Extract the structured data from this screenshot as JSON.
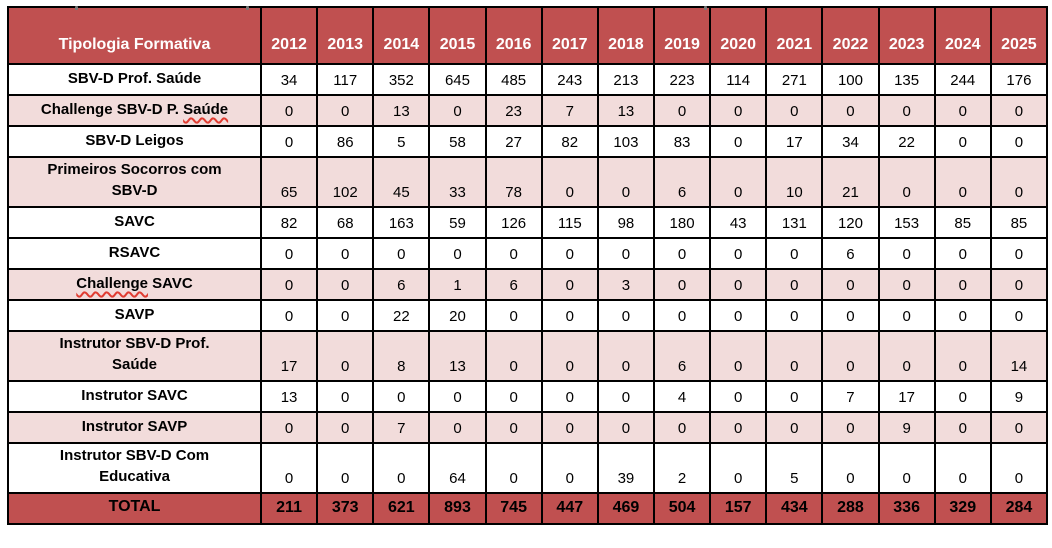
{
  "colors": {
    "header_bg": "#C05050",
    "total_bg": "#C05050",
    "row_alt_bg": "#F2DCDB",
    "row_bg": "#FFFFFF",
    "header_text": "#FFFFFF",
    "body_text": "#000000",
    "border": "#000000",
    "spellcheck_underline": "#E03C31"
  },
  "table": {
    "header": {
      "label_column": "Tipologia Formativa",
      "years": [
        "2012",
        "2013",
        "2014",
        "2015",
        "2016",
        "2017",
        "2018",
        "2019",
        "2020",
        "2021",
        "2022",
        "2023",
        "2024",
        "2025"
      ]
    },
    "rows": [
      {
        "label": "SBV-D Prof. Saúde",
        "shade": "white",
        "values": [
          34,
          117,
          352,
          645,
          485,
          243,
          213,
          223,
          114,
          271,
          100,
          135,
          244,
          176
        ]
      },
      {
        "label": "Challenge SBV-D P. Saúde",
        "shade": "pink",
        "label_parts": [
          {
            "text": "Challenge SBV-D P. ",
            "squiggle": false
          },
          {
            "text": "Saúde",
            "squiggle": true
          }
        ],
        "values": [
          0,
          0,
          13,
          0,
          23,
          7,
          13,
          0,
          0,
          0,
          0,
          0,
          0,
          0
        ]
      },
      {
        "label": "SBV-D Leigos",
        "shade": "white",
        "values": [
          0,
          86,
          5,
          58,
          27,
          82,
          103,
          83,
          0,
          17,
          34,
          22,
          0,
          0
        ]
      },
      {
        "label": "Primeiros Socorros com\nSBV-D",
        "shade": "pink",
        "two_line": true,
        "values": [
          65,
          102,
          45,
          33,
          78,
          0,
          0,
          6,
          0,
          10,
          21,
          0,
          0,
          0
        ]
      },
      {
        "label": "SAVC",
        "shade": "white",
        "values": [
          82,
          68,
          163,
          59,
          126,
          115,
          98,
          180,
          43,
          131,
          120,
          153,
          85,
          85
        ]
      },
      {
        "label": "RSAVC",
        "shade": "white",
        "values": [
          0,
          0,
          0,
          0,
          0,
          0,
          0,
          0,
          0,
          0,
          6,
          0,
          0,
          0
        ]
      },
      {
        "label": "Challenge SAVC",
        "shade": "pink",
        "label_parts": [
          {
            "text": "Challenge",
            "squiggle": true
          },
          {
            "text": " SAVC",
            "squiggle": false
          }
        ],
        "values": [
          0,
          0,
          6,
          1,
          6,
          0,
          3,
          0,
          0,
          0,
          0,
          0,
          0,
          0
        ]
      },
      {
        "label": "SAVP",
        "shade": "white",
        "values": [
          0,
          0,
          22,
          20,
          0,
          0,
          0,
          0,
          0,
          0,
          0,
          0,
          0,
          0
        ]
      },
      {
        "label": "Instrutor SBV-D Prof.\nSaúde",
        "shade": "pink",
        "two_line": true,
        "values": [
          17,
          0,
          8,
          13,
          0,
          0,
          0,
          6,
          0,
          0,
          0,
          0,
          0,
          14
        ]
      },
      {
        "label": "Instrutor SAVC",
        "shade": "white",
        "values": [
          13,
          0,
          0,
          0,
          0,
          0,
          0,
          4,
          0,
          0,
          7,
          17,
          0,
          9
        ]
      },
      {
        "label": "Instrutor SAVP",
        "shade": "pink",
        "values": [
          0,
          0,
          7,
          0,
          0,
          0,
          0,
          0,
          0,
          0,
          0,
          9,
          0,
          0
        ]
      },
      {
        "label": "Instrutor SBV-D Com\nEducativa",
        "shade": "white",
        "two_line": true,
        "values": [
          0,
          0,
          0,
          64,
          0,
          0,
          39,
          2,
          0,
          5,
          0,
          0,
          0,
          0
        ]
      }
    ],
    "total_row": {
      "label": "TOTAL",
      "values": [
        211,
        373,
        621,
        893,
        745,
        447,
        469,
        504,
        157,
        434,
        288,
        336,
        329,
        284
      ]
    }
  },
  "chart_data": {
    "type": "table",
    "columns": [
      "Tipologia Formativa",
      "2012",
      "2013",
      "2014",
      "2015",
      "2016",
      "2017",
      "2018",
      "2019",
      "2020",
      "2021",
      "2022",
      "2023",
      "2024",
      "2025"
    ],
    "rows": [
      [
        "SBV-D Prof. Saúde",
        34,
        117,
        352,
        645,
        485,
        243,
        213,
        223,
        114,
        271,
        100,
        135,
        244,
        176
      ],
      [
        "Challenge SBV-D P. Saúde",
        0,
        0,
        13,
        0,
        23,
        7,
        13,
        0,
        0,
        0,
        0,
        0,
        0,
        0
      ],
      [
        "SBV-D Leigos",
        0,
        86,
        5,
        58,
        27,
        82,
        103,
        83,
        0,
        17,
        34,
        22,
        0,
        0
      ],
      [
        "Primeiros Socorros com SBV-D",
        65,
        102,
        45,
        33,
        78,
        0,
        0,
        6,
        0,
        10,
        21,
        0,
        0,
        0
      ],
      [
        "SAVC",
        82,
        68,
        163,
        59,
        126,
        115,
        98,
        180,
        43,
        131,
        120,
        153,
        85,
        85
      ],
      [
        "RSAVC",
        0,
        0,
        0,
        0,
        0,
        0,
        0,
        0,
        0,
        0,
        6,
        0,
        0,
        0
      ],
      [
        "Challenge SAVC",
        0,
        0,
        6,
        1,
        6,
        0,
        3,
        0,
        0,
        0,
        0,
        0,
        0,
        0
      ],
      [
        "SAVP",
        0,
        0,
        22,
        20,
        0,
        0,
        0,
        0,
        0,
        0,
        0,
        0,
        0,
        0
      ],
      [
        "Instrutor SBV-D Prof. Saúde",
        17,
        0,
        8,
        13,
        0,
        0,
        0,
        6,
        0,
        0,
        0,
        0,
        0,
        14
      ],
      [
        "Instrutor SAVC",
        13,
        0,
        0,
        0,
        0,
        0,
        0,
        4,
        0,
        0,
        7,
        17,
        0,
        9
      ],
      [
        "Instrutor SAVP",
        0,
        0,
        7,
        0,
        0,
        0,
        0,
        0,
        0,
        0,
        0,
        9,
        0,
        0
      ],
      [
        "Instrutor SBV-D Com Educativa",
        0,
        0,
        0,
        64,
        0,
        0,
        39,
        2,
        0,
        5,
        0,
        0,
        0,
        0
      ],
      [
        "TOTAL",
        211,
        373,
        621,
        893,
        745,
        447,
        469,
        504,
        157,
        434,
        288,
        336,
        329,
        284
      ]
    ]
  }
}
